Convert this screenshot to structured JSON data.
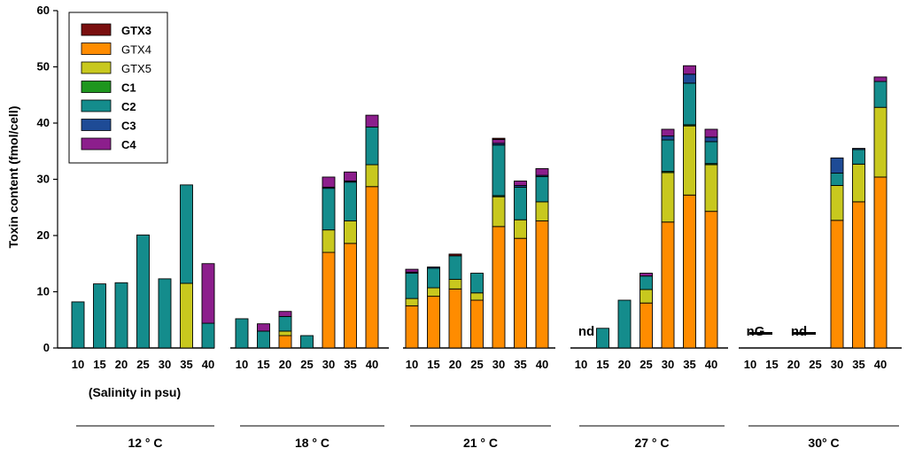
{
  "chart_data": {
    "type": "bar",
    "stacked": true,
    "ylabel": "Toxin content (fmol/cell)",
    "xlabel": "(Salinity in psu)",
    "ylim": [
      0,
      60
    ],
    "yticks": [
      0,
      10,
      20,
      30,
      40,
      50,
      60
    ],
    "legend_position": "top-left",
    "components": [
      {
        "name": "GTX3",
        "color": "#7a0f0f",
        "bold": true
      },
      {
        "name": "GTX4",
        "color": "#ff8c00",
        "bold": false
      },
      {
        "name": "GTX5",
        "color": "#c8c81e",
        "bold": false
      },
      {
        "name": "C1",
        "color": "#1e961e",
        "bold": true
      },
      {
        "name": "C2",
        "color": "#148c8c",
        "bold": true
      },
      {
        "name": "C3",
        "color": "#1e4b96",
        "bold": true
      },
      {
        "name": "C4",
        "color": "#8c1e8c",
        "bold": true
      }
    ],
    "stack_order": [
      "GTX4",
      "GTX5",
      "C1",
      "C2",
      "C3",
      "C4",
      "GTX3"
    ],
    "groups": [
      {
        "temperature": "12 ° C",
        "categories": [
          "10",
          "15",
          "20",
          "25",
          "30",
          "35",
          "40"
        ],
        "bars": [
          {
            "C2": 8.2
          },
          {
            "C2": 11.4
          },
          {
            "C2": 11.6
          },
          {
            "C2": 20.1
          },
          {
            "C2": 12.3
          },
          {
            "GTX5": 11.5,
            "C2": 17.5
          },
          {
            "C2": 4.4,
            "C4": 10.6
          }
        ]
      },
      {
        "temperature": "18 ° C",
        "categories": [
          "10",
          "15",
          "20",
          "25",
          "30",
          "35",
          "40"
        ],
        "bars": [
          {
            "C2": 5.2
          },
          {
            "C2": 3.0,
            "C4": 1.3
          },
          {
            "GTX4": 2.2,
            "GTX5": 0.8,
            "C2": 2.6,
            "C4": 0.9
          },
          {
            "C2": 2.2
          },
          {
            "GTX4": 17.0,
            "GTX5": 4.0,
            "C2": 7.4,
            "C3": 0.2,
            "C4": 1.8
          },
          {
            "GTX4": 18.6,
            "GTX5": 4.0,
            "C2": 6.9,
            "C3": 0.2,
            "C4": 1.6
          },
          {
            "GTX4": 28.7,
            "GTX5": 3.9,
            "C2": 6.7,
            "C4": 2.1
          }
        ]
      },
      {
        "temperature": "21 ° C",
        "categories": [
          "10",
          "15",
          "20",
          "25",
          "30",
          "35",
          "40"
        ],
        "bars": [
          {
            "GTX4": 7.5,
            "GTX5": 1.3,
            "C2": 4.5,
            "C3": 0.2,
            "C4": 0.5
          },
          {
            "GTX4": 9.2,
            "GTX5": 1.5,
            "C2": 3.5,
            "C3": 0.2
          },
          {
            "GTX4": 10.5,
            "GTX5": 1.7,
            "C2": 4.2,
            "GTX3": 0.3
          },
          {
            "GTX4": 8.5,
            "GTX5": 1.3,
            "C2": 3.5
          },
          {
            "GTX4": 21.6,
            "GTX5": 5.3,
            "C1": 0.2,
            "C2": 9.0,
            "C3": 0.3,
            "C4": 0.7,
            "GTX3": 0.2
          },
          {
            "GTX4": 19.5,
            "GTX5": 3.3,
            "C2": 5.8,
            "C3": 0.3,
            "C4": 0.8
          },
          {
            "GTX4": 22.6,
            "GTX5": 3.4,
            "C2": 4.5,
            "C3": 0.2,
            "C4": 1.2
          }
        ]
      },
      {
        "temperature": "27 ° C",
        "categories": [
          "10",
          "15",
          "20",
          "25",
          "30",
          "35",
          "40"
        ],
        "annotations": [
          {
            "category": "10",
            "text": "nd"
          }
        ],
        "bars": [
          {},
          {
            "C2": 3.5
          },
          {
            "C2": 8.5
          },
          {
            "GTX4": 8.0,
            "GTX5": 2.4,
            "C2": 2.4,
            "C4": 0.5
          },
          {
            "GTX4": 22.4,
            "GTX5": 8.8,
            "C1": 0.2,
            "C2": 5.6,
            "C3": 0.7,
            "C4": 1.2
          },
          {
            "GTX4": 27.2,
            "GTX5": 12.3,
            "C1": 0.2,
            "C2": 7.4,
            "C3": 1.6,
            "C4": 1.5
          },
          {
            "GTX4": 24.3,
            "GTX5": 8.3,
            "C1": 0.2,
            "C2": 3.9,
            "C3": 0.8,
            "C4": 1.4
          }
        ]
      },
      {
        "temperature": "30° C",
        "categories": [
          "10",
          "15",
          "20",
          "25",
          "30",
          "35",
          "40"
        ],
        "annotations": [
          {
            "category": "10",
            "text": "nG"
          },
          {
            "category": "20",
            "text": "nd"
          }
        ],
        "bars": [
          {},
          {},
          {},
          {},
          {
            "GTX4": 22.7,
            "GTX5": 6.2,
            "C2": 2.2,
            "C3": 2.7
          },
          {
            "GTX4": 26.0,
            "GTX5": 6.7,
            "C2": 2.6,
            "C3": 0.2
          },
          {
            "GTX4": 30.4,
            "GTX5": 12.4,
            "C2": 4.6,
            "C4": 0.8
          }
        ]
      }
    ]
  }
}
